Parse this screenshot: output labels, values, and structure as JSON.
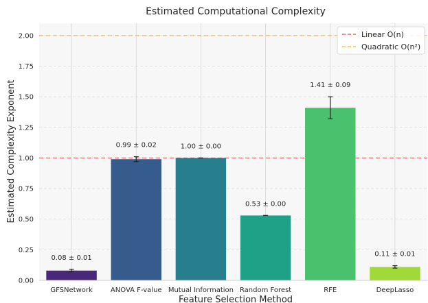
{
  "chart_data": {
    "type": "bar",
    "title": "Estimated Computational Complexity",
    "xlabel": "Feature Selection Method",
    "ylabel": "Estimated Complexity Exponent",
    "ylim": [
      0,
      2.1
    ],
    "yticks": [
      "0.00",
      "0.25",
      "0.50",
      "0.75",
      "1.00",
      "1.25",
      "1.50",
      "1.75",
      "2.00"
    ],
    "grid": true,
    "legend_position": "top-right",
    "categories": [
      "GFSNetwork",
      "ANOVA F-value",
      "Mutual Information",
      "Random Forest",
      "RFE",
      "DeepLasso"
    ],
    "values": [
      0.08,
      0.99,
      1.0,
      0.53,
      1.41,
      0.11
    ],
    "errors": [
      0.01,
      0.02,
      0.0,
      0.0,
      0.09,
      0.01
    ],
    "value_labels": [
      "0.08 ± 0.01",
      "0.99 ± 0.02",
      "1.00 ± 0.00",
      "0.53 ± 0.00",
      "1.41 ± 0.09",
      "0.11 ± 0.01"
    ],
    "colors": [
      "#482878",
      "#365C8D",
      "#277F8E",
      "#1FA187",
      "#4AC16D",
      "#A0DA39"
    ],
    "reference_lines": [
      {
        "name": "Linear O(n)",
        "y": 1.0,
        "color": "#d62728"
      },
      {
        "name": "Quadratic O(n²)",
        "y": 2.0,
        "color": "#ff9f0a"
      }
    ]
  }
}
